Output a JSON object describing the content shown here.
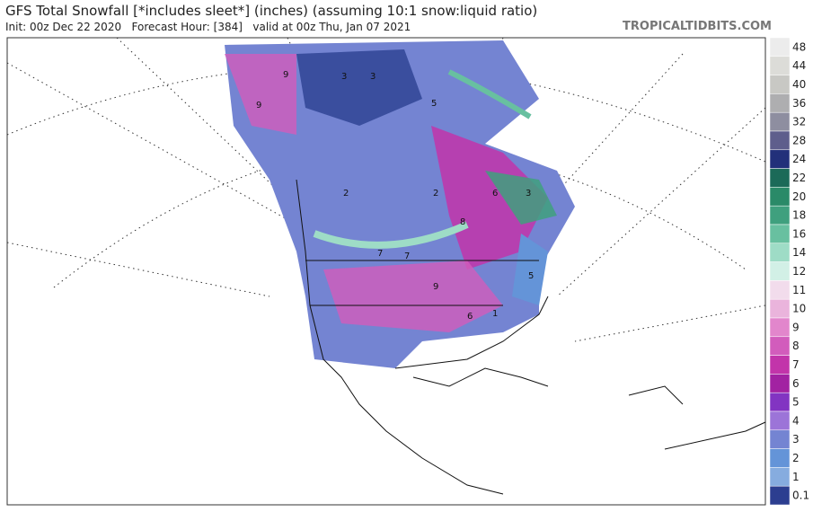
{
  "header": {
    "title": "GFS Total Snowfall [*includes sleet*] (inches) (assuming 10:1 snow:liquid ratio)",
    "subtitle": "Init: 00z Dec 22 2020   Forecast Hour: [384]   valid at 00z Thu, Jan 07 2021",
    "site": "TROPICALTIDBITS.COM"
  },
  "legend": {
    "values": [
      48,
      44,
      40,
      36,
      32,
      28,
      24,
      22,
      20,
      18,
      16,
      14,
      12,
      11,
      10,
      9,
      8,
      7,
      6,
      5,
      4,
      3,
      2,
      1,
      0.1
    ],
    "colors": [
      "#ececec",
      "#dcdcd8",
      "#c8c8c4",
      "#aeaeb0",
      "#8e8ea0",
      "#5e5e8c",
      "#22307a",
      "#1b6a58",
      "#2a8a68",
      "#3fa07e",
      "#68c0a0",
      "#9edcc6",
      "#d2f0e6",
      "#f2dcec",
      "#eab4dc",
      "#e286cc",
      "#d25cbc",
      "#c234aa",
      "#a222a2",
      "#8234c2",
      "#9c74d8",
      "#7484d2",
      "#6494d8",
      "#86acdf",
      "#2c3e90"
    ]
  },
  "map_labels": [
    "3",
    "3",
    "9",
    "9",
    "5",
    "2",
    "2",
    "6",
    "7",
    "7",
    "9",
    "8",
    "5",
    "6",
    "1",
    "3"
  ]
}
